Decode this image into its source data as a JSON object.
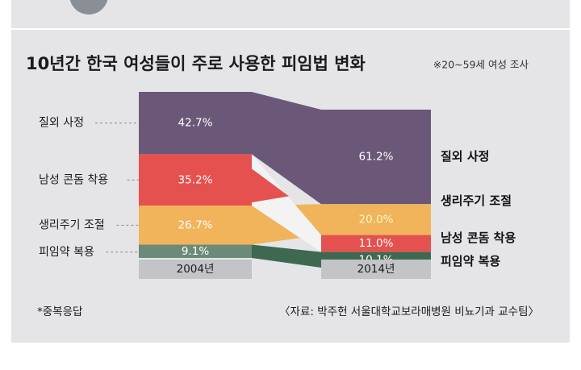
{
  "chart_data": {
    "type": "bar",
    "title": "10년간 한국 여성들이 주로 사용한 피임법 변화",
    "subtitle": "※20~59세 여성 조사",
    "categories": [
      "2004년",
      "2014년"
    ],
    "series": [
      {
        "name": "질외 사정",
        "values": [
          42.7,
          61.2
        ],
        "labels": [
          "42.7%",
          "61.2%"
        ]
      },
      {
        "name": "남성 콘돔 착용",
        "values": [
          35.2,
          11.0
        ],
        "labels": [
          "35.2%",
          "11.0%"
        ]
      },
      {
        "name": "생리주기 조절",
        "values": [
          26.7,
          20.0
        ],
        "labels": [
          "26.7%",
          "20.0%"
        ]
      },
      {
        "name": "피임약 복용",
        "values": [
          9.1,
          10.1
        ],
        "labels": [
          "9.1%",
          "10.1%"
        ]
      }
    ],
    "footnote": "*중복응답",
    "source": "〈자료: 박주헌 서울대학교보라매병원 비뇨기과 교수팀〉"
  },
  "colors": {
    "background": "#e5e5e8",
    "frame": "#d6d6d9",
    "withdrawal": "#6b5878",
    "condom": "#e5514f",
    "rhythm": "#f1b45a",
    "pill": "#6b8a79",
    "pill_2014": "#3f6850",
    "axis_band": "#c2c4c8",
    "flow_light": "#f3f3f4"
  }
}
